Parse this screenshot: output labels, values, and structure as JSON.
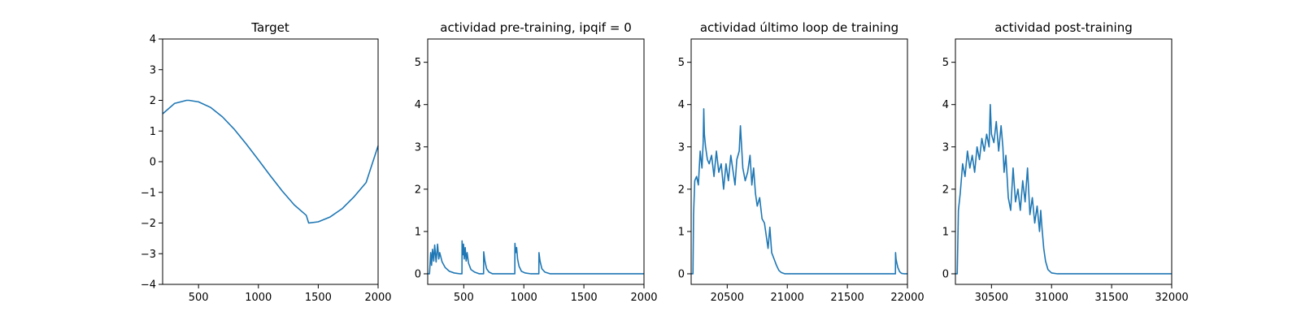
{
  "style": {
    "line_color": "#1f77b4"
  },
  "chart_data": [
    {
      "type": "line",
      "title": "Target",
      "xlim": [
        200,
        2000
      ],
      "ylim": [
        -4,
        4
      ],
      "xticks": [
        500,
        1000,
        1500,
        2000
      ],
      "xtick_labels": [
        "500",
        "1000",
        "1500",
        "2000"
      ],
      "yticks": [
        -4,
        -3,
        -2,
        -1,
        0,
        1,
        2,
        3,
        4
      ],
      "ytick_labels": [
        "−4",
        "−3",
        "−2",
        "−1",
        "0",
        "1",
        "2",
        "3",
        "4"
      ],
      "series": [
        {
          "x": [
            200,
            300,
            400,
            420,
            500,
            600,
            700,
            800,
            900,
            1000,
            1100,
            1200,
            1300,
            1400,
            1420,
            1500,
            1600,
            1700,
            1800,
            1900,
            2000
          ],
          "y": [
            1.56,
            1.9,
            2.0,
            2.0,
            1.95,
            1.77,
            1.46,
            1.05,
            0.57,
            0.06,
            -0.46,
            -0.96,
            -1.41,
            -1.75,
            -2.0,
            -1.96,
            -1.8,
            -1.53,
            -1.14,
            -0.68,
            0.52
          ]
        }
      ]
    },
    {
      "type": "line",
      "title": "actividad pre-training, ipqif = 0",
      "xlim": [
        200,
        2000
      ],
      "ylim": [
        -0.25,
        5.55
      ],
      "xticks": [
        500,
        1000,
        1500,
        2000
      ],
      "xtick_labels": [
        "500",
        "1000",
        "1500",
        "2000"
      ],
      "yticks": [
        0,
        1,
        2,
        3,
        4,
        5
      ],
      "ytick_labels": [
        "0",
        "1",
        "2",
        "3",
        "4",
        "5"
      ],
      "series": [
        {
          "x": [
            200,
            215,
            225,
            232,
            240,
            250,
            258,
            270,
            282,
            292,
            300,
            320,
            345,
            380,
            420,
            470,
            485,
            486,
            492,
            498,
            504,
            512,
            520,
            528,
            540,
            560,
            590,
            630,
            665,
            666,
            676,
            690,
            710,
            740,
            800,
            900,
            925,
            926,
            932,
            940,
            948,
            960,
            980,
            1010,
            1060,
            1125,
            1126,
            1135,
            1150,
            1175,
            1220,
            1300,
            1500,
            2000
          ],
          "y": [
            0.0,
            0.0,
            0.5,
            0.2,
            0.58,
            0.3,
            0.68,
            0.28,
            0.7,
            0.35,
            0.5,
            0.28,
            0.15,
            0.06,
            0.02,
            0.0,
            0.0,
            0.78,
            0.45,
            0.7,
            0.35,
            0.62,
            0.3,
            0.5,
            0.25,
            0.1,
            0.04,
            0.0,
            0.0,
            0.52,
            0.3,
            0.12,
            0.04,
            0.0,
            0.0,
            0.0,
            0.0,
            0.72,
            0.5,
            0.62,
            0.35,
            0.18,
            0.06,
            0.02,
            0.0,
            0.0,
            0.5,
            0.3,
            0.12,
            0.04,
            0.0,
            0.0,
            0.0,
            0.0
          ]
        }
      ]
    },
    {
      "type": "line",
      "title": "actividad último loop de training",
      "xlim": [
        20200,
        22000
      ],
      "ylim": [
        -0.25,
        5.55
      ],
      "xticks": [
        20500,
        21000,
        21500,
        22000
      ],
      "xtick_labels": [
        "20500",
        "21000",
        "21500",
        "22000"
      ],
      "yticks": [
        0,
        1,
        2,
        3,
        4,
        5
      ],
      "ytick_labels": [
        "0",
        "1",
        "2",
        "3",
        "4",
        "5"
      ],
      "series": [
        {
          "x": [
            20200,
            20215,
            20220,
            20230,
            20245,
            20260,
            20275,
            20290,
            20300,
            20305,
            20310,
            20320,
            20335,
            20350,
            20370,
            20390,
            20410,
            20430,
            20450,
            20470,
            20490,
            20510,
            20530,
            20550,
            20565,
            20580,
            20600,
            20610,
            20630,
            20650,
            20670,
            20690,
            20705,
            20720,
            20735,
            20750,
            20770,
            20790,
            20810,
            20825,
            20840,
            20855,
            20870,
            20890,
            20910,
            20930,
            20950,
            20980,
            21020,
            21100,
            21500,
            21900,
            21901,
            21905,
            21912,
            21920,
            21935,
            21950,
            21975,
            22000
          ],
          "y": [
            0.0,
            0.0,
            1.4,
            2.2,
            2.3,
            2.1,
            2.9,
            2.5,
            3.1,
            3.9,
            3.3,
            3.0,
            2.7,
            2.6,
            2.8,
            2.3,
            2.9,
            2.4,
            2.6,
            2.0,
            2.6,
            2.2,
            2.8,
            2.4,
            2.1,
            2.7,
            2.9,
            3.5,
            2.5,
            2.2,
            2.4,
            2.8,
            2.1,
            2.5,
            1.9,
            1.6,
            1.8,
            1.3,
            1.2,
            0.9,
            0.6,
            1.1,
            0.5,
            0.35,
            0.2,
            0.08,
            0.03,
            0.0,
            0.0,
            0.0,
            0.0,
            0.0,
            0.5,
            0.35,
            0.25,
            0.15,
            0.05,
            0.01,
            0.0,
            0.0
          ]
        }
      ]
    },
    {
      "type": "line",
      "title": "actividad post-training",
      "xlim": [
        30200,
        32000
      ],
      "ylim": [
        -0.25,
        5.55
      ],
      "xticks": [
        30500,
        31000,
        31500,
        32000
      ],
      "xtick_labels": [
        "30500",
        "31000",
        "31500",
        "32000"
      ],
      "yticks": [
        0,
        1,
        2,
        3,
        4,
        5
      ],
      "ytick_labels": [
        "0",
        "1",
        "2",
        "3",
        "4",
        "5"
      ],
      "series": [
        {
          "x": [
            30200,
            30215,
            30225,
            30240,
            30260,
            30280,
            30300,
            30320,
            30340,
            30360,
            30380,
            30400,
            30420,
            30440,
            30460,
            30480,
            30490,
            30500,
            30520,
            30540,
            30560,
            30580,
            30595,
            30605,
            30620,
            30640,
            30660,
            30680,
            30700,
            30720,
            30740,
            30760,
            30780,
            30800,
            30820,
            30840,
            30860,
            30880,
            30900,
            30910,
            30920,
            30935,
            30950,
            30970,
            31000,
            31050,
            31200,
            31500,
            32000
          ],
          "y": [
            0.0,
            0.0,
            1.5,
            1.9,
            2.6,
            2.3,
            2.9,
            2.5,
            2.8,
            2.4,
            3.0,
            2.7,
            3.2,
            2.9,
            3.3,
            3.0,
            4.0,
            3.3,
            3.1,
            3.6,
            2.9,
            3.5,
            3.0,
            2.4,
            2.8,
            1.8,
            1.5,
            2.5,
            1.7,
            2.0,
            1.5,
            2.2,
            1.7,
            2.5,
            1.4,
            1.8,
            1.2,
            1.6,
            1.0,
            1.5,
            1.1,
            0.6,
            0.3,
            0.1,
            0.02,
            0.0,
            0.0,
            0.0,
            0.0
          ]
        }
      ]
    }
  ]
}
